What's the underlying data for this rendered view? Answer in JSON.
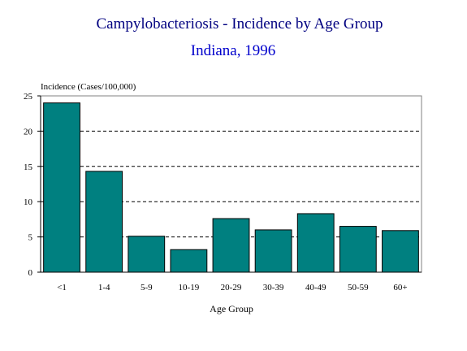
{
  "chart_data": {
    "type": "bar",
    "title": "Campylobacteriosis - Incidence by Age Group",
    "subtitle": "Indiana, 1996",
    "ylabel": "Incidence (Cases/100,000)",
    "xlabel": "Age Group",
    "categories": [
      "<1",
      "1-4",
      "5-9",
      "10-19",
      "20-29",
      "30-39",
      "40-49",
      "50-59",
      "60+"
    ],
    "values": [
      24.0,
      14.3,
      5.1,
      3.2,
      7.6,
      6.0,
      8.3,
      6.5,
      5.9
    ],
    "ylim": [
      0,
      25
    ],
    "yticks": [
      0,
      5,
      10,
      15,
      20,
      25
    ],
    "grid": true,
    "legend": "none",
    "colors": {
      "bar": "#008080",
      "title": "#000080",
      "subtitle": "#0000cc",
      "grid": "#000000",
      "axis": "#000000"
    }
  }
}
